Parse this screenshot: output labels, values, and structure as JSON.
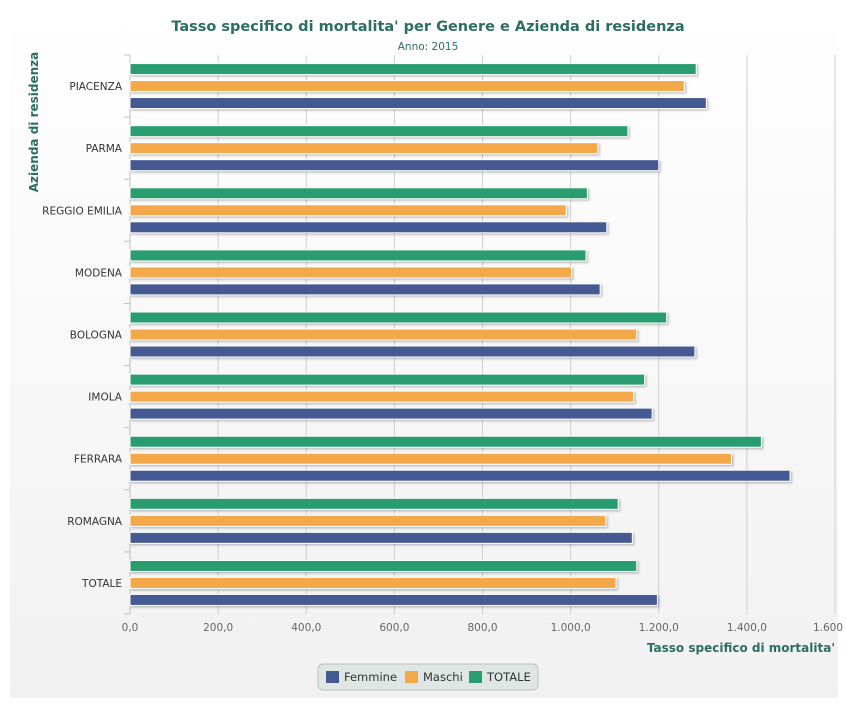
{
  "chart_data": {
    "type": "bar",
    "orientation": "horizontal",
    "title": "Tasso specifico di mortalita' per Genere e Azienda di residenza",
    "subtitle": "Anno: 2015",
    "ylabel": "Azienda di residenza",
    "xlabel": "Tasso specifico di mortalita'",
    "categories": [
      "PIACENZA",
      "PARMA",
      "REGGIO EMILIA",
      "MODENA",
      "BOLOGNA",
      "IMOLA",
      "FERRARA",
      "ROMAGNA",
      "TOTALE"
    ],
    "xlim": [
      0,
      1600
    ],
    "x_ticks": [
      "0,0",
      "200,0",
      "400,0",
      "600,0",
      "800,0",
      "1.000,0",
      "1.200,0",
      "1.400,0",
      "1.600"
    ],
    "grid": true,
    "legend_position": "bottom-center",
    "series": [
      {
        "name": "TOTALE",
        "color": "#2a9d6f",
        "values": [
          1285,
          1130,
          1038,
          1035,
          1218,
          1168,
          1433,
          1108,
          1150
        ]
      },
      {
        "name": "Maschi",
        "color": "#f3a84a",
        "values": [
          1258,
          1062,
          990,
          1002,
          1150,
          1143,
          1365,
          1080,
          1103
        ]
      },
      {
        "name": "Femmine",
        "color": "#455a92",
        "values": [
          1308,
          1200,
          1082,
          1067,
          1282,
          1185,
          1498,
          1140,
          1197
        ]
      }
    ],
    "legend_order": [
      "Femmine",
      "Maschi",
      "TOTALE"
    ]
  }
}
